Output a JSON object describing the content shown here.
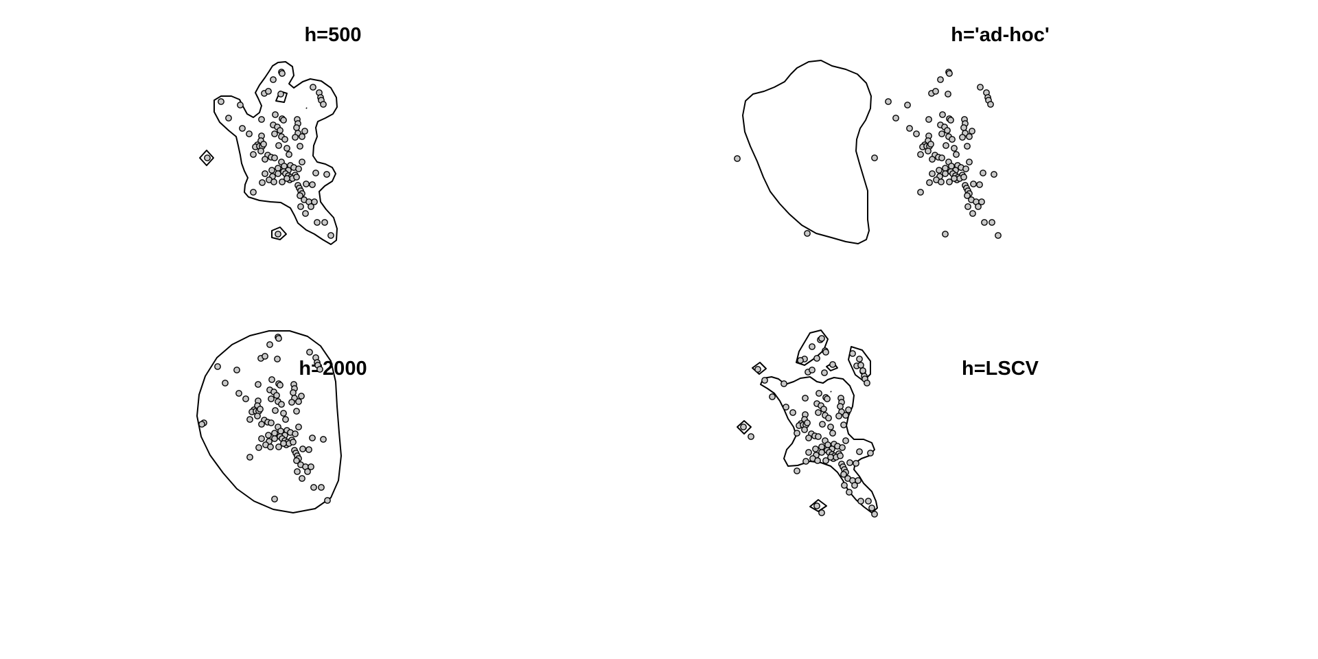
{
  "figure": {
    "background": "#ffffff",
    "point_fill": "#c8c8c8",
    "line_color": "#000000"
  },
  "chart_data": [
    {
      "type": "scatter",
      "title": "h=500",
      "xlabel": "",
      "ylabel": "",
      "axes_visible": false,
      "grid": false,
      "legend": "none",
      "overlay": "home-range contour polygons"
    },
    {
      "type": "scatter",
      "title": "h='ad-hoc'",
      "xlabel": "",
      "ylabel": "",
      "axes_visible": false,
      "grid": false,
      "legend": "none",
      "overlay": "home-range contour polygon"
    },
    {
      "type": "scatter",
      "title": "h=2000",
      "xlabel": "",
      "ylabel": "",
      "axes_visible": false,
      "grid": false,
      "legend": "none",
      "overlay": "home-range contour polygon"
    },
    {
      "type": "scatter",
      "title": "h=LSCV",
      "xlabel": "",
      "ylabel": "",
      "axes_visible": false,
      "grid": false,
      "legend": "none",
      "overlay": "home-range contour polygons"
    }
  ]
}
